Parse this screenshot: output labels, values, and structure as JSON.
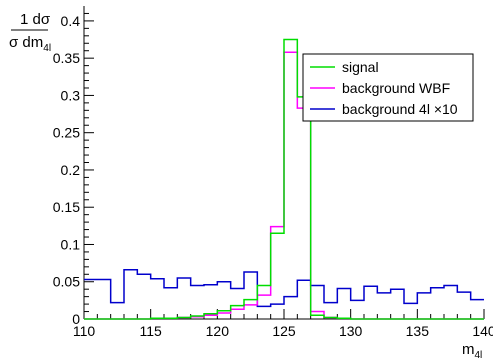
{
  "chart_data": {
    "type": "line",
    "subtype": "step-histogram",
    "xlim": [
      110,
      140
    ],
    "ylim": [
      0,
      0.42
    ],
    "bin_width": 1,
    "bin_edges_start": 110,
    "x_ticks": [
      110,
      115,
      120,
      125,
      130,
      135,
      140
    ],
    "y_ticks": [
      0,
      0.05,
      0.1,
      0.15,
      0.2,
      0.25,
      0.3,
      0.35,
      0.4
    ],
    "y_tick_labels": [
      "0",
      "0.05",
      "0.1",
      "0.15",
      "0.2",
      "0.25",
      "0.3",
      "0.35",
      "0.4"
    ],
    "x_tick_labels": [
      "110",
      "115",
      "120",
      "125",
      "130",
      "135",
      "140"
    ],
    "xlabel": {
      "main": "m",
      "sub": "4l"
    },
    "ylabel": {
      "num": "1 dσ",
      "den_main": "σ dm",
      "den_sub": "4l"
    },
    "grid": false,
    "legend_position": "top-right",
    "series": [
      {
        "name": "signal",
        "color": "#00dd00",
        "values": [
          0,
          0,
          0,
          0,
          0,
          0.001,
          0.001,
          0.002,
          0.004,
          0.007,
          0.011,
          0.018,
          0.026,
          0.045,
          0.115,
          0.375,
          0.298,
          0.005,
          0.002,
          0.001,
          0,
          0,
          0,
          0,
          0,
          0,
          0,
          0,
          0,
          0
        ]
      },
      {
        "name": "background WBF",
        "color": "#ff00ff",
        "values": [
          0,
          0,
          0,
          0,
          0,
          0.001,
          0.001,
          0.002,
          0.003,
          0.005,
          0.008,
          0.013,
          0.019,
          0.032,
          0.124,
          0.358,
          0.283,
          0.01,
          0.002,
          0.001,
          0,
          0,
          0,
          0,
          0,
          0,
          0,
          0,
          0,
          0
        ]
      },
      {
        "name": "background 4l ×10",
        "color": "#0000cc",
        "values": [
          0.053,
          0.053,
          0.022,
          0.066,
          0.06,
          0.054,
          0.042,
          0.055,
          0.045,
          0.046,
          0.05,
          0.041,
          0.063,
          0.017,
          0.02,
          0.03,
          0.052,
          0.045,
          0.022,
          0.041,
          0.025,
          0.044,
          0.035,
          0.04,
          0.021,
          0.035,
          0.042,
          0.045,
          0.036,
          0.026
        ]
      }
    ]
  }
}
